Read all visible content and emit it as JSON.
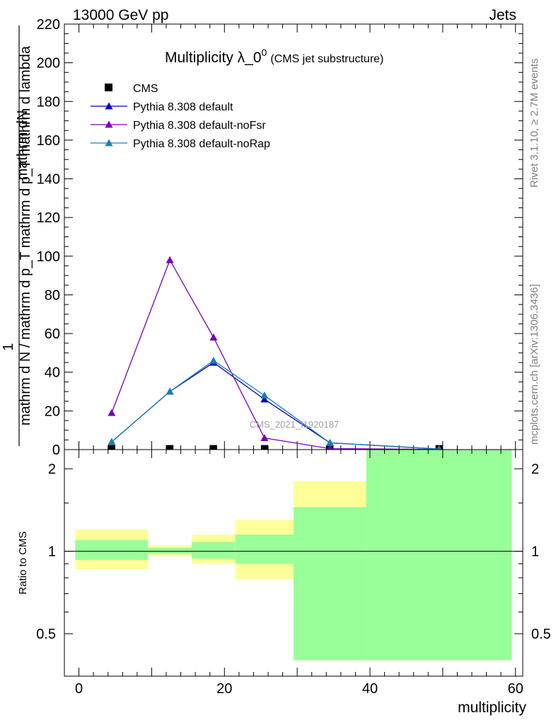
{
  "header": {
    "left": "13000 GeV pp",
    "right": "Jets"
  },
  "side": {
    "rivet": "Rivet 3.1.10, ≥ 2.7M events",
    "mcplots": "mcplots.cern.ch [arXiv:1306.3436]"
  },
  "watermark": "CMS_2021_I1920187",
  "chart_data": [
    {
      "type": "line",
      "title": "Multiplicity λ_0",
      "title_sup": "0",
      "subtitle": "(CMS jet substructure)",
      "ylabel_main": "1",
      "ylabel_numerator": "mathrm dN",
      "ylabel_denominator": "mathrm d N / mathrm d p_T mathrm d p_T mathrm d lambda",
      "xlim": [
        -2,
        61
      ],
      "ylim": [
        0,
        220
      ],
      "yticks": [
        0,
        20,
        40,
        60,
        80,
        100,
        120,
        140,
        160,
        180,
        200,
        220
      ],
      "yticklabels": [
        "0",
        "20",
        "40",
        "60",
        "80",
        "100",
        "120",
        "140",
        "160",
        "180",
        "200",
        "220"
      ],
      "legend_position": "top-left",
      "colors": {
        "CMS": "#000000",
        "default": "#0000cc",
        "noFsr": "#7a00b4",
        "noRap": "#1a7fb0"
      },
      "series": [
        {
          "name": "CMS",
          "marker": "square",
          "x": [
            4.5,
            12.5,
            18.5,
            25.5,
            34.5,
            49.5
          ],
          "y": [
            0.5,
            0.5,
            0.5,
            0.5,
            0.5,
            0.5
          ]
        },
        {
          "name": "Pythia 8.308 default",
          "marker": "triangle",
          "x": [
            4.5,
            12.5,
            18.5,
            25.5,
            34.5,
            49.5
          ],
          "y": [
            4,
            30,
            45,
            26,
            3.5,
            0.3
          ]
        },
        {
          "name": "Pythia 8.308 default-noFsr",
          "marker": "triangle",
          "x": [
            4.5,
            12.5,
            18.5,
            25.5,
            34.5,
            49.5
          ],
          "y": [
            19,
            98,
            58,
            6,
            0.5,
            0.1
          ]
        },
        {
          "name": "Pythia 8.308 default-noRap",
          "marker": "triangle",
          "x": [
            4.5,
            12.5,
            18.5,
            25.5,
            34.5,
            49.5
          ],
          "y": [
            4,
            30,
            46,
            28,
            3.5,
            0.3
          ]
        }
      ]
    },
    {
      "type": "area",
      "ylabel": "Ratio to CMS",
      "xlabel": "multiplicity",
      "xlim": [
        -2,
        61
      ],
      "ylim": [
        0.35,
        2.35
      ],
      "xticks": [
        0,
        20,
        40,
        60
      ],
      "xticklabels": [
        "0",
        "20",
        "40",
        "60"
      ],
      "yticks": [
        0.5,
        1,
        2
      ],
      "yticklabels": [
        "0.5",
        "1",
        "2"
      ],
      "colors": {
        "inner_band": "#99ff99",
        "outer_band": "#ffff99",
        "reference_line": "#000000"
      },
      "bins": [
        {
          "x": [
            -0.5,
            9.5
          ],
          "inner": [
            0.93,
            1.1
          ],
          "outer": [
            0.86,
            1.2
          ]
        },
        {
          "x": [
            9.5,
            15.5
          ],
          "inner": [
            0.98,
            1.03
          ],
          "outer": [
            0.96,
            1.05
          ]
        },
        {
          "x": [
            15.5,
            21.5
          ],
          "inner": [
            0.94,
            1.08
          ],
          "outer": [
            0.9,
            1.15
          ]
        },
        {
          "x": [
            21.5,
            29.5
          ],
          "inner": [
            0.9,
            1.15
          ],
          "outer": [
            0.79,
            1.3
          ]
        },
        {
          "x": [
            29.5,
            39.5
          ],
          "inner": [
            0.4,
            1.45
          ],
          "outer": [
            0.4,
            1.8
          ]
        },
        {
          "x": [
            39.5,
            59.5
          ],
          "inner": [
            0.4,
            2.35
          ],
          "outer": [
            0.4,
            2.35
          ]
        }
      ]
    }
  ]
}
